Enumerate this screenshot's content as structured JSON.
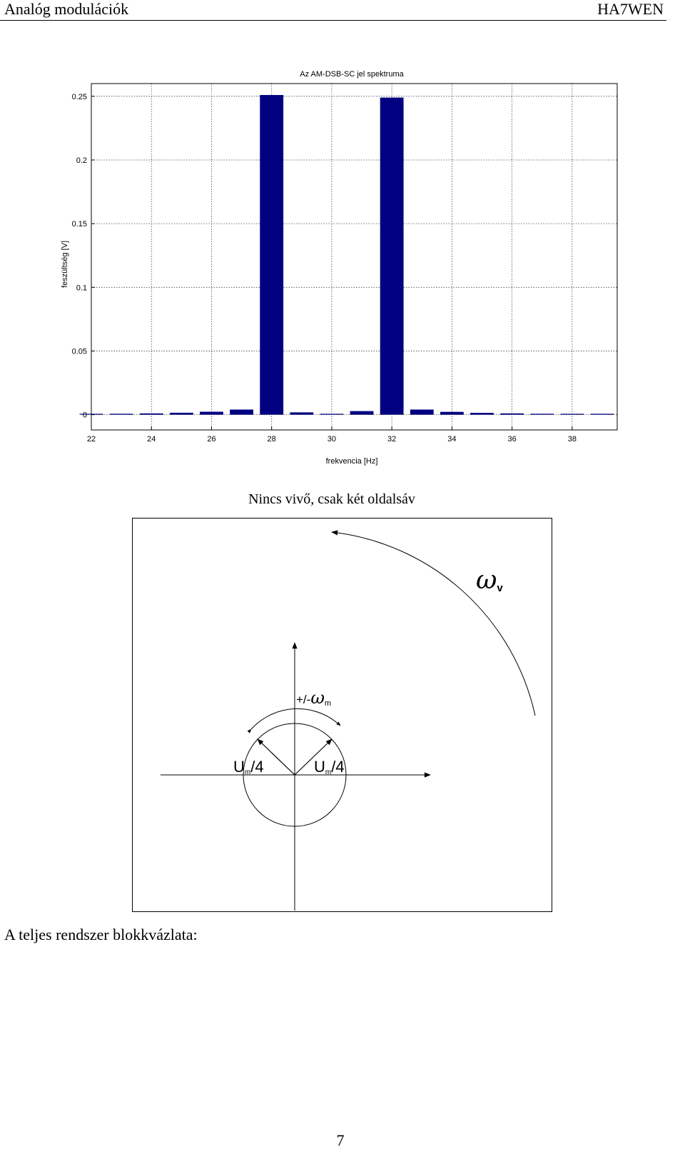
{
  "header": {
    "title": "Analóg modulációk",
    "author": "HA7WEN"
  },
  "chart_data": {
    "type": "bar",
    "title": "Az AM-DSB-SC jel spektruma",
    "xlabel": "frekvencia [Hz]",
    "ylabel": "feszültség [V]",
    "xlim": [
      22,
      39.5
    ],
    "ylim": [
      -0.012,
      0.26
    ],
    "xticks": [
      "22",
      "24",
      "26",
      "28",
      "30",
      "32",
      "34",
      "36",
      "38"
    ],
    "yticks": [
      "0",
      "0.05",
      "0.1",
      "0.15",
      "0.2",
      "0.25"
    ],
    "grid": true,
    "bar_color": "#000080",
    "x": [
      22,
      23,
      24,
      25,
      26,
      27,
      28,
      29,
      30,
      31,
      32,
      33,
      34,
      35,
      36,
      37,
      38,
      39
    ],
    "values": [
      0.0005,
      0.0007,
      0.001,
      0.0015,
      0.0023,
      0.004,
      0.251,
      0.0018,
      0.0003,
      0.0028,
      0.249,
      0.004,
      0.0022,
      0.0014,
      0.001,
      0.0007,
      0.0005,
      0.0003
    ]
  },
  "caption": "Nincs vivő, csak két oldalsáv",
  "phasor": {
    "carrier_label": "ω",
    "carrier_sub": "v",
    "modulation_label": "+/-",
    "modulation_omega": "ω",
    "modulation_sub": "m",
    "left_vector": {
      "u": "U",
      "sub": "m",
      "div": "/4"
    },
    "right_vector": {
      "u": "U",
      "sub": "m",
      "div": "/4"
    }
  },
  "section_title": "A teljes rendszer blokkvázlata:",
  "page_number": "7"
}
